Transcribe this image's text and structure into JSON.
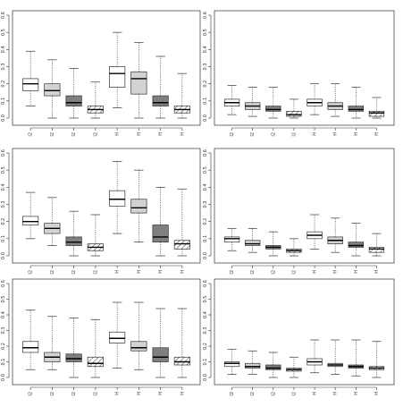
{
  "fill_colors": {
    "white": "#ffffff",
    "light": "#d3d3d3",
    "dark": "#7f7f7f",
    "hatched": "#ffffff",
    "stroke": "#333333"
  },
  "chart_data": [
    {
      "type": "box",
      "title": "",
      "xlabel": "",
      "ylabel": "",
      "ylim": [
        0,
        0.6
      ],
      "yticks": [
        "0.0",
        "0.1",
        "0.2",
        "0.3",
        "0.4",
        "0.5",
        "0.6"
      ],
      "grid": false,
      "categories": [
        "I2",
        "I2",
        "I2",
        "I2",
        "H",
        "H",
        "H",
        "H"
      ],
      "fills": [
        "white",
        "light",
        "dark",
        "hatched",
        "white",
        "light",
        "dark",
        "hatched"
      ],
      "boxes": [
        {
          "whislo": 0.07,
          "q1": 0.16,
          "med": 0.2,
          "q3": 0.23,
          "whishi": 0.39
        },
        {
          "whislo": 0.0,
          "q1": 0.13,
          "med": 0.16,
          "q3": 0.2,
          "whishi": 0.34
        },
        {
          "whislo": 0.0,
          "q1": 0.07,
          "med": 0.09,
          "q3": 0.13,
          "whishi": 0.29
        },
        {
          "whislo": 0.0,
          "q1": 0.03,
          "med": 0.05,
          "q3": 0.07,
          "whishi": 0.21
        },
        {
          "whislo": 0.06,
          "q1": 0.18,
          "med": 0.26,
          "q3": 0.3,
          "whishi": 0.5
        },
        {
          "whislo": 0.0,
          "q1": 0.14,
          "med": 0.23,
          "q3": 0.27,
          "whishi": 0.44
        },
        {
          "whislo": 0.0,
          "q1": 0.07,
          "med": 0.09,
          "q3": 0.13,
          "whishi": 0.36
        },
        {
          "whislo": 0.0,
          "q1": 0.03,
          "med": 0.05,
          "q3": 0.07,
          "whishi": 0.26
        }
      ]
    },
    {
      "type": "box",
      "title": "",
      "xlabel": "",
      "ylabel": "",
      "ylim": [
        0,
        0.6
      ],
      "yticks": [
        "0.0",
        "0.1",
        "0.2",
        "0.3",
        "0.4",
        "0.5",
        "0.6"
      ],
      "grid": false,
      "categories": [
        "I2",
        "I2",
        "I2",
        "I2",
        "H",
        "H",
        "H",
        "H"
      ],
      "fills": [
        "white",
        "light",
        "dark",
        "hatched",
        "white",
        "light",
        "dark",
        "hatched"
      ],
      "boxes": [
        {
          "whislo": 0.02,
          "q1": 0.07,
          "med": 0.09,
          "q3": 0.11,
          "whishi": 0.19
        },
        {
          "whislo": 0.01,
          "q1": 0.05,
          "med": 0.07,
          "q3": 0.09,
          "whishi": 0.18
        },
        {
          "whislo": 0.0,
          "q1": 0.04,
          "med": 0.05,
          "q3": 0.07,
          "whishi": 0.18
        },
        {
          "whislo": 0.0,
          "q1": 0.01,
          "med": 0.02,
          "q3": 0.04,
          "whishi": 0.11
        },
        {
          "whislo": 0.02,
          "q1": 0.07,
          "med": 0.09,
          "q3": 0.11,
          "whishi": 0.2
        },
        {
          "whislo": 0.01,
          "q1": 0.05,
          "med": 0.07,
          "q3": 0.09,
          "whishi": 0.2
        },
        {
          "whislo": 0.0,
          "q1": 0.04,
          "med": 0.05,
          "q3": 0.07,
          "whishi": 0.18
        },
        {
          "whislo": 0.0,
          "q1": 0.01,
          "med": 0.03,
          "q3": 0.04,
          "whishi": 0.12
        }
      ]
    },
    {
      "type": "box",
      "title": "",
      "xlabel": "",
      "ylabel": "",
      "ylim": [
        0,
        0.6
      ],
      "yticks": [
        "0.0",
        "0.1",
        "0.2",
        "0.3",
        "0.4",
        "0.5",
        "0.6"
      ],
      "grid": false,
      "categories": [
        "I2",
        "I2",
        "I2",
        "I2",
        "H",
        "H",
        "H",
        "H"
      ],
      "fills": [
        "white",
        "light",
        "dark",
        "hatched",
        "white",
        "light",
        "dark",
        "hatched"
      ],
      "boxes": [
        {
          "whislo": 0.1,
          "q1": 0.18,
          "med": 0.2,
          "q3": 0.23,
          "whishi": 0.37
        },
        {
          "whislo": 0.06,
          "q1": 0.13,
          "med": 0.16,
          "q3": 0.19,
          "whishi": 0.34
        },
        {
          "whislo": 0.0,
          "q1": 0.06,
          "med": 0.08,
          "q3": 0.11,
          "whishi": 0.26
        },
        {
          "whislo": 0.0,
          "q1": 0.03,
          "med": 0.05,
          "q3": 0.07,
          "whishi": 0.24
        },
        {
          "whislo": 0.13,
          "q1": 0.29,
          "med": 0.33,
          "q3": 0.38,
          "whishi": 0.55
        },
        {
          "whislo": 0.08,
          "q1": 0.25,
          "med": 0.28,
          "q3": 0.33,
          "whishi": 0.5
        },
        {
          "whislo": 0.0,
          "q1": 0.08,
          "med": 0.11,
          "q3": 0.18,
          "whishi": 0.4
        },
        {
          "whislo": 0.0,
          "q1": 0.04,
          "med": 0.07,
          "q3": 0.09,
          "whishi": 0.39
        }
      ]
    },
    {
      "type": "box",
      "title": "",
      "xlabel": "",
      "ylabel": "",
      "ylim": [
        0,
        0.6
      ],
      "yticks": [
        "0.0",
        "0.1",
        "0.2",
        "0.3",
        "0.4",
        "0.5",
        "0.6"
      ],
      "grid": false,
      "categories": [
        "I2",
        "I2",
        "I2",
        "I2",
        "H",
        "H",
        "H",
        "H"
      ],
      "fills": [
        "white",
        "light",
        "dark",
        "hatched",
        "white",
        "light",
        "dark",
        "hatched"
      ],
      "boxes": [
        {
          "whislo": 0.03,
          "q1": 0.08,
          "med": 0.1,
          "q3": 0.11,
          "whishi": 0.16
        },
        {
          "whislo": 0.02,
          "q1": 0.06,
          "med": 0.07,
          "q3": 0.09,
          "whishi": 0.16
        },
        {
          "whislo": 0.0,
          "q1": 0.04,
          "med": 0.05,
          "q3": 0.06,
          "whishi": 0.14
        },
        {
          "whislo": 0.0,
          "q1": 0.02,
          "med": 0.03,
          "q3": 0.04,
          "whishi": 0.1
        },
        {
          "whislo": 0.04,
          "q1": 0.1,
          "med": 0.12,
          "q3": 0.14,
          "whishi": 0.24
        },
        {
          "whislo": 0.02,
          "q1": 0.07,
          "med": 0.09,
          "q3": 0.11,
          "whishi": 0.22
        },
        {
          "whislo": 0.0,
          "q1": 0.05,
          "med": 0.06,
          "q3": 0.08,
          "whishi": 0.19
        },
        {
          "whislo": 0.0,
          "q1": 0.02,
          "med": 0.04,
          "q3": 0.05,
          "whishi": 0.13
        }
      ]
    },
    {
      "type": "box",
      "title": "",
      "xlabel": "",
      "ylabel": "",
      "ylim": [
        0,
        0.6
      ],
      "yticks": [
        "0.0",
        "0.1",
        "0.2",
        "0.3",
        "0.4",
        "0.5",
        "0.6"
      ],
      "grid": false,
      "categories": [
        "I2",
        "I2",
        "I2",
        "I2",
        "H",
        "H",
        "H",
        "H"
      ],
      "fills": [
        "white",
        "light",
        "dark",
        "hatched",
        "white",
        "light",
        "dark",
        "hatched"
      ],
      "boxes": [
        {
          "whislo": 0.05,
          "q1": 0.16,
          "med": 0.19,
          "q3": 0.23,
          "whishi": 0.43
        },
        {
          "whislo": 0.05,
          "q1": 0.1,
          "med": 0.13,
          "q3": 0.16,
          "whishi": 0.39
        },
        {
          "whislo": 0.0,
          "q1": 0.1,
          "med": 0.12,
          "q3": 0.15,
          "whishi": 0.38
        },
        {
          "whislo": 0.0,
          "q1": 0.07,
          "med": 0.09,
          "q3": 0.13,
          "whishi": 0.37
        },
        {
          "whislo": 0.06,
          "q1": 0.22,
          "med": 0.25,
          "q3": 0.29,
          "whishi": 0.48
        },
        {
          "whislo": 0.05,
          "q1": 0.17,
          "med": 0.19,
          "q3": 0.23,
          "whishi": 0.48
        },
        {
          "whislo": 0.0,
          "q1": 0.1,
          "med": 0.13,
          "q3": 0.19,
          "whishi": 0.44
        },
        {
          "whislo": 0.0,
          "q1": 0.08,
          "med": 0.1,
          "q3": 0.13,
          "whishi": 0.44
        }
      ]
    },
    {
      "type": "box",
      "title": "",
      "xlabel": "",
      "ylabel": "",
      "ylim": [
        0,
        0.6
      ],
      "yticks": [
        "0.0",
        "0.1",
        "0.2",
        "0.3",
        "0.4",
        "0.5",
        "0.6"
      ],
      "grid": false,
      "categories": [
        "I2",
        "I2",
        "I2",
        "I2",
        "H",
        "H",
        "H",
        "H"
      ],
      "fills": [
        "white",
        "light",
        "dark",
        "hatched",
        "white",
        "light",
        "dark",
        "hatched"
      ],
      "boxes": [
        {
          "whislo": 0.02,
          "q1": 0.07,
          "med": 0.09,
          "q3": 0.1,
          "whishi": 0.18
        },
        {
          "whislo": 0.02,
          "q1": 0.06,
          "med": 0.07,
          "q3": 0.09,
          "whishi": 0.17
        },
        {
          "whislo": 0.0,
          "q1": 0.05,
          "med": 0.06,
          "q3": 0.08,
          "whishi": 0.16
        },
        {
          "whislo": 0.0,
          "q1": 0.04,
          "med": 0.05,
          "q3": 0.06,
          "whishi": 0.13
        },
        {
          "whislo": 0.03,
          "q1": 0.08,
          "med": 0.1,
          "q3": 0.12,
          "whishi": 0.24
        },
        {
          "whislo": 0.02,
          "q1": 0.07,
          "med": 0.08,
          "q3": 0.09,
          "whishi": 0.24
        },
        {
          "whislo": 0.01,
          "q1": 0.06,
          "med": 0.07,
          "q3": 0.08,
          "whishi": 0.24
        },
        {
          "whislo": 0.0,
          "q1": 0.05,
          "med": 0.06,
          "q3": 0.07,
          "whishi": 0.23
        }
      ]
    }
  ]
}
